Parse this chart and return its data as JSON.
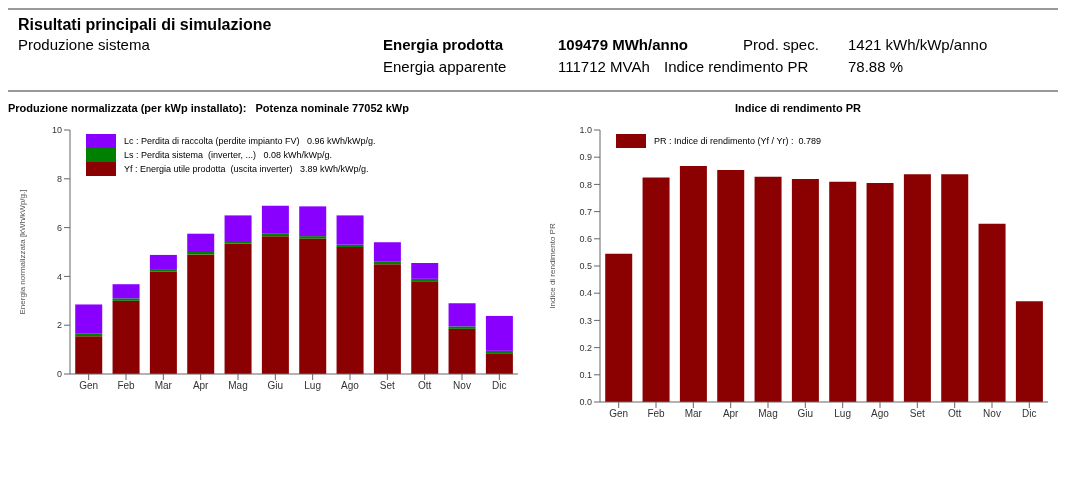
{
  "chart_data": [
    {
      "type": "other",
      "title": "Risultati principali di simulazione",
      "annotations": [
        "Produzione sistema",
        "Energia prodotta",
        "109479 MWh/anno",
        "Prod. spec.",
        "1421 kWh/kWp/anno",
        "Energia apparente",
        "111712 MVAh",
        "Indice rendimento PR",
        "78.88 %"
      ]
    },
    {
      "type": "bar",
      "title": "Produzione normalizzata (per kWp installato):   Potenza nominale 77052 kWp",
      "ylabel": "Energia normalizzata [kWh/kWp/g.]",
      "categories": [
        "Gen",
        "Feb",
        "Mar",
        "Apr",
        "Mag",
        "Giu",
        "Lug",
        "Ago",
        "Set",
        "Ott",
        "Nov",
        "Dic"
      ],
      "stacked": true,
      "ylim": [
        0,
        10
      ],
      "yticks": [
        0,
        2,
        4,
        6,
        8,
        10
      ],
      "legend": "top left",
      "series": [
        {
          "name": "Yf : Energia utile prodotta  (uscita inverter)   3.89 kWh/kWp/g.",
          "color": "#8b0000",
          "values": [
            1.55,
            3.0,
            4.2,
            4.9,
            5.35,
            5.65,
            5.55,
            5.2,
            4.5,
            3.8,
            1.85,
            0.85
          ]
        },
        {
          "name": "Ls : Perdita sistema  (inverter, ...)   0.08 kWh/kWp/g.",
          "color": "#008000",
          "values": [
            0.1,
            0.1,
            0.1,
            0.1,
            0.1,
            0.1,
            0.1,
            0.1,
            0.1,
            0.1,
            0.1,
            0.1
          ]
        },
        {
          "name": "Lc : Perdita di raccolta (perdite impianto FV)   0.96 kWh/kWp/g.",
          "color": "#8a00ff",
          "values": [
            1.2,
            0.58,
            0.58,
            0.75,
            1.05,
            1.15,
            1.22,
            1.2,
            0.8,
            0.65,
            0.95,
            1.43
          ]
        }
      ]
    },
    {
      "type": "bar",
      "title": "Indice di rendimento PR",
      "ylabel": "Indice di rendimento PR",
      "categories": [
        "Gen",
        "Feb",
        "Mar",
        "Apr",
        "Mag",
        "Giu",
        "Lug",
        "Ago",
        "Set",
        "Ott",
        "Nov",
        "Dic"
      ],
      "ylim": [
        0,
        1
      ],
      "yticks": [
        {
          "value": 0,
          "label": "0.0"
        },
        0.1,
        0.2,
        0.3,
        0.4,
        0.5,
        0.6,
        0.7,
        0.8,
        0.9,
        {
          "value": 1,
          "label": "1.0"
        }
      ],
      "legend": "top left",
      "series": [
        {
          "name": "PR : Indice di rendimento (Yf / Yr) :  0.789",
          "color": "#8b0000",
          "values": [
            0.545,
            0.825,
            0.868,
            0.853,
            0.828,
            0.82,
            0.81,
            0.805,
            0.837,
            0.837,
            0.655,
            0.37
          ]
        }
      ]
    }
  ]
}
